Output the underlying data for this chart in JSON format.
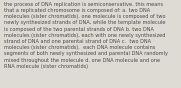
{
  "background_color": "#dedad4",
  "text_color": "#4a4a4a",
  "font_size": 3.6,
  "figsize": [
    1.81,
    0.88
  ],
  "dpi": 100,
  "linespacing": 1.3,
  "lines": [
    "the process of DNA replication is semiconservative. this means",
    "that a replicated chromosome is composed of: a. two DNA",
    "molecules (sister chromatids). one molecule is composed of two",
    "newly synthesized strands of DNA, while the template molecule",
    "is composed of the two parental strands of DNA b. two DNA",
    "molecules (sister chromatids), each with one newly synthesized",
    "strand of DNA and one parental strand of DNA c.  two DNA",
    "molecules (sister chromatids).  each DNA molecule contains",
    "segments of both newly synthesized and parental DNA randomly",
    "mixed throughout the molecule d. one DNA molecule and one",
    "RNA molecule (sister chromatids)"
  ]
}
